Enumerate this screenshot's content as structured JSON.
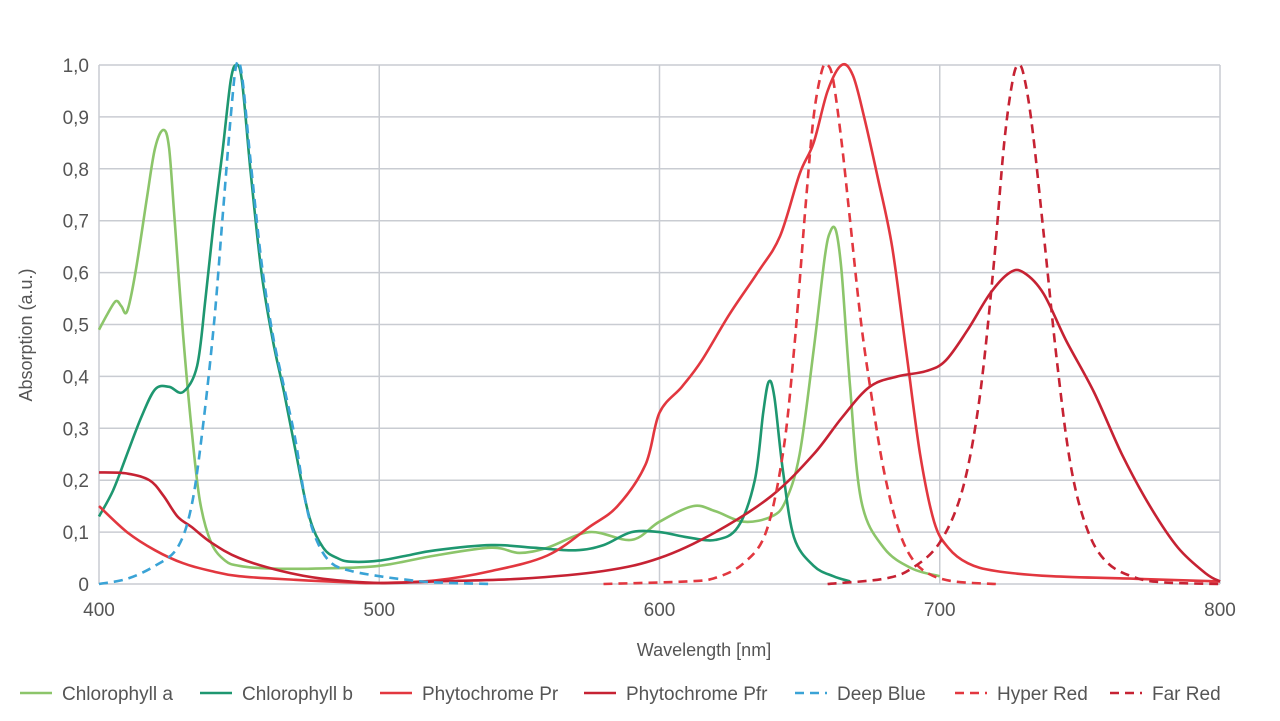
{
  "chart_data": {
    "type": "line",
    "title": "",
    "xlabel": "Wavelength [nm]",
    "ylabel": "Absorption (a.u.)",
    "xlim": [
      400,
      800
    ],
    "ylim": [
      0,
      1.0
    ],
    "x_ticks": [
      {
        "value": 400,
        "label": "400"
      },
      {
        "value": 500,
        "label": "500"
      },
      {
        "value": 600,
        "label": "600"
      },
      {
        "value": 700,
        "label": "700"
      },
      {
        "value": 800,
        "label": "800"
      }
    ],
    "y_ticks": [
      {
        "value": 0,
        "label": "0"
      },
      {
        "value": 0.1,
        "label": "0,1"
      },
      {
        "value": 0.2,
        "label": "0,2"
      },
      {
        "value": 0.3,
        "label": "0,3"
      },
      {
        "value": 0.4,
        "label": "0,4"
      },
      {
        "value": 0.5,
        "label": "0,5"
      },
      {
        "value": 0.6,
        "label": "0,6"
      },
      {
        "value": 0.7,
        "label": "0,7"
      },
      {
        "value": 0.8,
        "label": "0,8"
      },
      {
        "value": 0.9,
        "label": "0,9"
      },
      {
        "value": 1.0,
        "label": "1,0"
      }
    ],
    "grid": true,
    "legend_position": "bottom",
    "series": [
      {
        "name": "Chlorophyll a",
        "color": "#8cc56a",
        "dash": false,
        "points": [
          [
            400,
            0.49
          ],
          [
            403,
            0.52
          ],
          [
            406,
            0.545
          ],
          [
            408,
            0.535
          ],
          [
            410,
            0.525
          ],
          [
            413,
            0.6
          ],
          [
            417,
            0.74
          ],
          [
            420,
            0.84
          ],
          [
            423,
            0.875
          ],
          [
            425,
            0.84
          ],
          [
            427,
            0.7
          ],
          [
            430,
            0.48
          ],
          [
            433,
            0.3
          ],
          [
            436,
            0.16
          ],
          [
            440,
            0.08
          ],
          [
            445,
            0.045
          ],
          [
            450,
            0.035
          ],
          [
            460,
            0.03
          ],
          [
            480,
            0.03
          ],
          [
            500,
            0.035
          ],
          [
            520,
            0.055
          ],
          [
            540,
            0.07
          ],
          [
            550,
            0.06
          ],
          [
            560,
            0.07
          ],
          [
            575,
            0.1
          ],
          [
            590,
            0.085
          ],
          [
            600,
            0.12
          ],
          [
            612,
            0.15
          ],
          [
            620,
            0.14
          ],
          [
            630,
            0.12
          ],
          [
            640,
            0.13
          ],
          [
            645,
            0.16
          ],
          [
            650,
            0.25
          ],
          [
            655,
            0.45
          ],
          [
            659,
            0.63
          ],
          [
            661,
            0.68
          ],
          [
            663,
            0.68
          ],
          [
            665,
            0.6
          ],
          [
            668,
            0.38
          ],
          [
            672,
            0.16
          ],
          [
            680,
            0.07
          ],
          [
            690,
            0.03
          ],
          [
            700,
            0.015
          ]
        ]
      },
      {
        "name": "Chlorophyll b",
        "color": "#1e9770",
        "dash": false,
        "points": [
          [
            400,
            0.13
          ],
          [
            405,
            0.18
          ],
          [
            410,
            0.25
          ],
          [
            415,
            0.32
          ],
          [
            420,
            0.375
          ],
          [
            425,
            0.38
          ],
          [
            430,
            0.37
          ],
          [
            435,
            0.42
          ],
          [
            438,
            0.55
          ],
          [
            441,
            0.7
          ],
          [
            444,
            0.83
          ],
          [
            447,
            0.97
          ],
          [
            449,
            1.0
          ],
          [
            451,
            0.97
          ],
          [
            454,
            0.8
          ],
          [
            458,
            0.6
          ],
          [
            462,
            0.47
          ],
          [
            466,
            0.37
          ],
          [
            470,
            0.26
          ],
          [
            475,
            0.13
          ],
          [
            480,
            0.07
          ],
          [
            485,
            0.05
          ],
          [
            490,
            0.043
          ],
          [
            500,
            0.045
          ],
          [
            510,
            0.055
          ],
          [
            520,
            0.065
          ],
          [
            540,
            0.075
          ],
          [
            555,
            0.07
          ],
          [
            570,
            0.065
          ],
          [
            580,
            0.075
          ],
          [
            590,
            0.1
          ],
          [
            600,
            0.1
          ],
          [
            610,
            0.09
          ],
          [
            620,
            0.085
          ],
          [
            628,
            0.11
          ],
          [
            634,
            0.2
          ],
          [
            637,
            0.33
          ],
          [
            639,
            0.39
          ],
          [
            641,
            0.36
          ],
          [
            644,
            0.22
          ],
          [
            648,
            0.09
          ],
          [
            655,
            0.035
          ],
          [
            662,
            0.015
          ],
          [
            668,
            0.005
          ]
        ]
      },
      {
        "name": "Phytochrome Pr",
        "color": "#e2373f",
        "dash": false,
        "points": [
          [
            400,
            0.15
          ],
          [
            410,
            0.1
          ],
          [
            420,
            0.065
          ],
          [
            430,
            0.04
          ],
          [
            440,
            0.025
          ],
          [
            450,
            0.015
          ],
          [
            470,
            0.008
          ],
          [
            490,
            0.003
          ],
          [
            500,
            0.002
          ],
          [
            520,
            0.007
          ],
          [
            540,
            0.025
          ],
          [
            560,
            0.055
          ],
          [
            575,
            0.11
          ],
          [
            585,
            0.15
          ],
          [
            595,
            0.23
          ],
          [
            600,
            0.33
          ],
          [
            608,
            0.38
          ],
          [
            615,
            0.43
          ],
          [
            625,
            0.52
          ],
          [
            635,
            0.6
          ],
          [
            643,
            0.67
          ],
          [
            650,
            0.79
          ],
          [
            655,
            0.85
          ],
          [
            660,
            0.95
          ],
          [
            665,
            1.0
          ],
          [
            669,
            0.98
          ],
          [
            673,
            0.9
          ],
          [
            678,
            0.78
          ],
          [
            683,
            0.65
          ],
          [
            688,
            0.45
          ],
          [
            693,
            0.25
          ],
          [
            698,
            0.12
          ],
          [
            703,
            0.07
          ],
          [
            710,
            0.04
          ],
          [
            720,
            0.025
          ],
          [
            740,
            0.015
          ],
          [
            770,
            0.01
          ],
          [
            800,
            0.005
          ]
        ]
      },
      {
        "name": "Phytochrome Pfr",
        "color": "#c62233",
        "dash": false,
        "points": [
          [
            400,
            0.215
          ],
          [
            410,
            0.213
          ],
          [
            418,
            0.2
          ],
          [
            423,
            0.17
          ],
          [
            428,
            0.13
          ],
          [
            433,
            0.11
          ],
          [
            440,
            0.08
          ],
          [
            450,
            0.05
          ],
          [
            465,
            0.025
          ],
          [
            480,
            0.01
          ],
          [
            500,
            0.002
          ],
          [
            520,
            0.005
          ],
          [
            550,
            0.01
          ],
          [
            580,
            0.025
          ],
          [
            600,
            0.05
          ],
          [
            620,
            0.1
          ],
          [
            640,
            0.17
          ],
          [
            655,
            0.25
          ],
          [
            665,
            0.32
          ],
          [
            675,
            0.38
          ],
          [
            685,
            0.4
          ],
          [
            695,
            0.41
          ],
          [
            702,
            0.43
          ],
          [
            710,
            0.49
          ],
          [
            718,
            0.56
          ],
          [
            725,
            0.6
          ],
          [
            730,
            0.6
          ],
          [
            737,
            0.56
          ],
          [
            745,
            0.47
          ],
          [
            755,
            0.37
          ],
          [
            765,
            0.25
          ],
          [
            775,
            0.15
          ],
          [
            785,
            0.07
          ],
          [
            795,
            0.02
          ],
          [
            800,
            0.005
          ]
        ]
      },
      {
        "name": "Deep Blue",
        "color": "#3aa3d6",
        "dash": true,
        "points": [
          [
            400,
            0.0
          ],
          [
            410,
            0.01
          ],
          [
            420,
            0.035
          ],
          [
            428,
            0.07
          ],
          [
            433,
            0.15
          ],
          [
            437,
            0.3
          ],
          [
            441,
            0.5
          ],
          [
            444,
            0.7
          ],
          [
            447,
            0.9
          ],
          [
            449,
            1.0
          ],
          [
            451,
            0.98
          ],
          [
            454,
            0.82
          ],
          [
            458,
            0.62
          ],
          [
            462,
            0.48
          ],
          [
            466,
            0.38
          ],
          [
            470,
            0.28
          ],
          [
            474,
            0.15
          ],
          [
            478,
            0.08
          ],
          [
            483,
            0.04
          ],
          [
            490,
            0.025
          ],
          [
            500,
            0.015
          ],
          [
            510,
            0.008
          ],
          [
            520,
            0.003
          ],
          [
            540,
            0.0
          ]
        ]
      },
      {
        "name": "Hyper Red",
        "color": "#e2373f",
        "dash": true,
        "points": [
          [
            580,
            0.0
          ],
          [
            610,
            0.005
          ],
          [
            620,
            0.012
          ],
          [
            630,
            0.04
          ],
          [
            638,
            0.1
          ],
          [
            644,
            0.25
          ],
          [
            648,
            0.45
          ],
          [
            652,
            0.72
          ],
          [
            655,
            0.9
          ],
          [
            658,
            0.99
          ],
          [
            660,
            1.0
          ],
          [
            662,
            0.97
          ],
          [
            665,
            0.85
          ],
          [
            668,
            0.7
          ],
          [
            672,
            0.5
          ],
          [
            676,
            0.35
          ],
          [
            680,
            0.22
          ],
          [
            685,
            0.11
          ],
          [
            690,
            0.05
          ],
          [
            696,
            0.02
          ],
          [
            705,
            0.005
          ],
          [
            720,
            0.0
          ]
        ]
      },
      {
        "name": "Far Red",
        "color": "#c62233",
        "dash": true,
        "points": [
          [
            660,
            0.0
          ],
          [
            680,
            0.01
          ],
          [
            690,
            0.03
          ],
          [
            700,
            0.08
          ],
          [
            708,
            0.18
          ],
          [
            714,
            0.35
          ],
          [
            719,
            0.6
          ],
          [
            723,
            0.85
          ],
          [
            726,
            0.97
          ],
          [
            728,
            1.0
          ],
          [
            730,
            0.98
          ],
          [
            733,
            0.88
          ],
          [
            737,
            0.68
          ],
          [
            742,
            0.42
          ],
          [
            747,
            0.22
          ],
          [
            753,
            0.1
          ],
          [
            760,
            0.04
          ],
          [
            770,
            0.012
          ],
          [
            780,
            0.003
          ],
          [
            800,
            0.0
          ]
        ]
      }
    ]
  }
}
